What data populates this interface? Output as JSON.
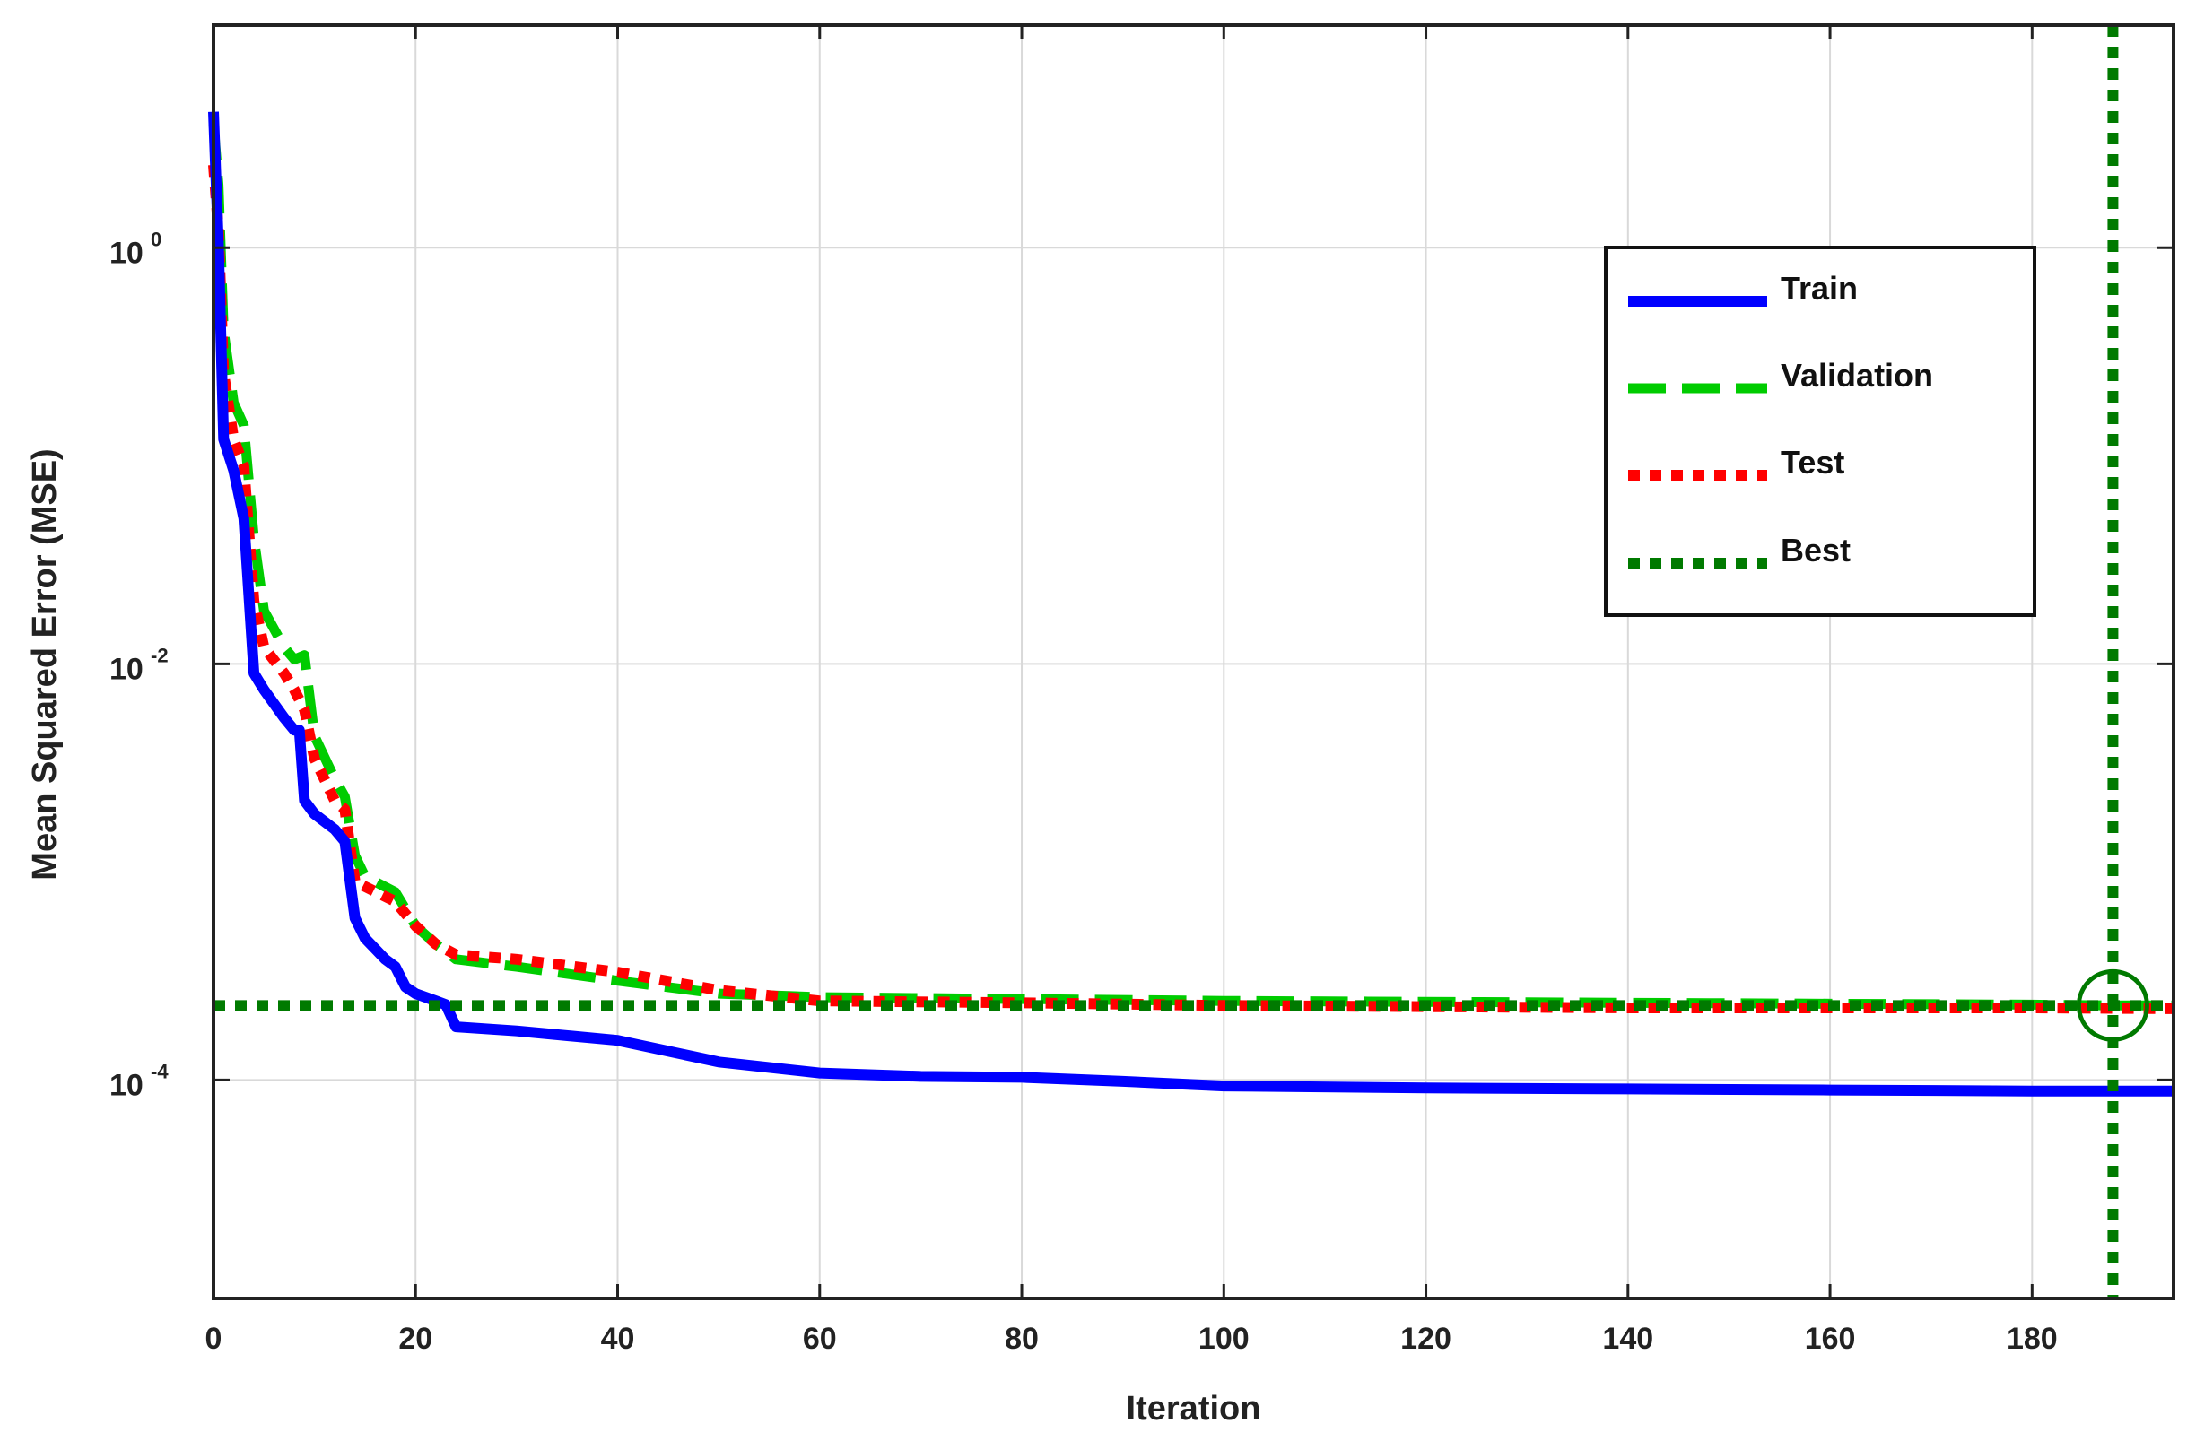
{
  "chart_data": {
    "type": "line",
    "xlabel": "Iteration",
    "ylabel": "Mean Squared Error  (MSE)",
    "xlim": [
      0,
      194
    ],
    "ylim_log10": [
      -5.05,
      1.07
    ],
    "yscale": "log",
    "x_ticks": [
      0,
      20,
      40,
      60,
      80,
      100,
      120,
      140,
      160,
      180
    ],
    "y_ticks": [
      {
        "exp": 0,
        "base": "10",
        "sup": "0"
      },
      {
        "exp": -2,
        "base": "10",
        "sup": "-2"
      },
      {
        "exp": -4,
        "base": "10",
        "sup": "-4"
      }
    ],
    "grid": true,
    "legend_position": "top-right",
    "legend": [
      {
        "key": "train",
        "label": "Train"
      },
      {
        "key": "validation",
        "label": "Validation"
      },
      {
        "key": "test",
        "label": "Test"
      },
      {
        "key": "best",
        "label": "Best"
      }
    ],
    "series": [
      {
        "key": "train",
        "name": "Train",
        "color": "#0000ff",
        "style": "solid",
        "points": [
          [
            0,
            4.5
          ],
          [
            0.5,
            1.0
          ],
          [
            1,
            0.12
          ],
          [
            2,
            0.085
          ],
          [
            3,
            0.05
          ],
          [
            4,
            0.009
          ],
          [
            5,
            0.0075
          ],
          [
            7,
            0.0055
          ],
          [
            8,
            0.0048
          ],
          [
            8.5,
            0.0048
          ],
          [
            9,
            0.0022
          ],
          [
            10,
            0.0019
          ],
          [
            12,
            0.0016
          ],
          [
            13,
            0.0014
          ],
          [
            14,
            0.0006
          ],
          [
            15,
            0.00048
          ],
          [
            17,
            0.00038
          ],
          [
            18,
            0.00035
          ],
          [
            19,
            0.00028
          ],
          [
            20,
            0.00026
          ],
          [
            22,
            0.00024
          ],
          [
            23,
            0.00023
          ],
          [
            24,
            0.00018
          ],
          [
            30,
            0.000172
          ],
          [
            40,
            0.000155
          ],
          [
            50,
            0.000122
          ],
          [
            60,
            0.000108
          ],
          [
            70,
            0.000104
          ],
          [
            80,
            0.000103
          ],
          [
            90,
            9.85e-05
          ],
          [
            100,
            9.35e-05
          ],
          [
            120,
            9.15e-05
          ],
          [
            140,
            9.05e-05
          ],
          [
            160,
            8.95e-05
          ],
          [
            180,
            8.85e-05
          ],
          [
            194,
            8.85e-05
          ]
        ]
      },
      {
        "key": "validation",
        "name": "Validation",
        "color": "#00cc00",
        "style": "dashed",
        "points": [
          [
            0,
            4.0
          ],
          [
            0.5,
            2.0
          ],
          [
            1,
            0.4
          ],
          [
            2,
            0.18
          ],
          [
            3,
            0.14
          ],
          [
            4,
            0.04
          ],
          [
            5,
            0.018
          ],
          [
            7,
            0.012
          ],
          [
            8,
            0.0105
          ],
          [
            9,
            0.011
          ],
          [
            10,
            0.0045
          ],
          [
            12,
            0.0028
          ],
          [
            13,
            0.0023
          ],
          [
            14,
            0.0012
          ],
          [
            15,
            0.00095
          ],
          [
            18,
            0.0008
          ],
          [
            20,
            0.00055
          ],
          [
            22,
            0.00045
          ],
          [
            24,
            0.00038
          ],
          [
            30,
            0.00035
          ],
          [
            40,
            0.0003
          ],
          [
            50,
            0.00026
          ],
          [
            60,
            0.00025
          ],
          [
            80,
            0.000245
          ],
          [
            100,
            0.00024
          ],
          [
            140,
            0.000235
          ],
          [
            180,
            0.00023
          ],
          [
            188,
            0.000228
          ],
          [
            194,
            0.000228
          ]
        ]
      },
      {
        "key": "test",
        "name": "Test",
        "color": "#ff0000",
        "style": "dotted",
        "points": [
          [
            0,
            2.5
          ],
          [
            0.5,
            1.2
          ],
          [
            1,
            0.25
          ],
          [
            2,
            0.12
          ],
          [
            3,
            0.09
          ],
          [
            4,
            0.02
          ],
          [
            5,
            0.012
          ],
          [
            7,
            0.009
          ],
          [
            8,
            0.0075
          ],
          [
            9,
            0.006
          ],
          [
            10,
            0.0035
          ],
          [
            12,
            0.0022
          ],
          [
            13,
            0.002
          ],
          [
            14,
            0.0009
          ],
          [
            15,
            0.00085
          ],
          [
            18,
            0.00072
          ],
          [
            20,
            0.00055
          ],
          [
            22,
            0.00045
          ],
          [
            24,
            0.0004
          ],
          [
            30,
            0.00038
          ],
          [
            40,
            0.00033
          ],
          [
            50,
            0.00027
          ],
          [
            60,
            0.00024
          ],
          [
            80,
            0.000235
          ],
          [
            100,
            0.000228
          ],
          [
            140,
            0.000222
          ],
          [
            180,
            0.000222
          ],
          [
            194,
            0.00022
          ]
        ]
      }
    ],
    "best": {
      "label": "Best",
      "color": "#007a00",
      "x": 188,
      "y": 0.000228
    }
  }
}
